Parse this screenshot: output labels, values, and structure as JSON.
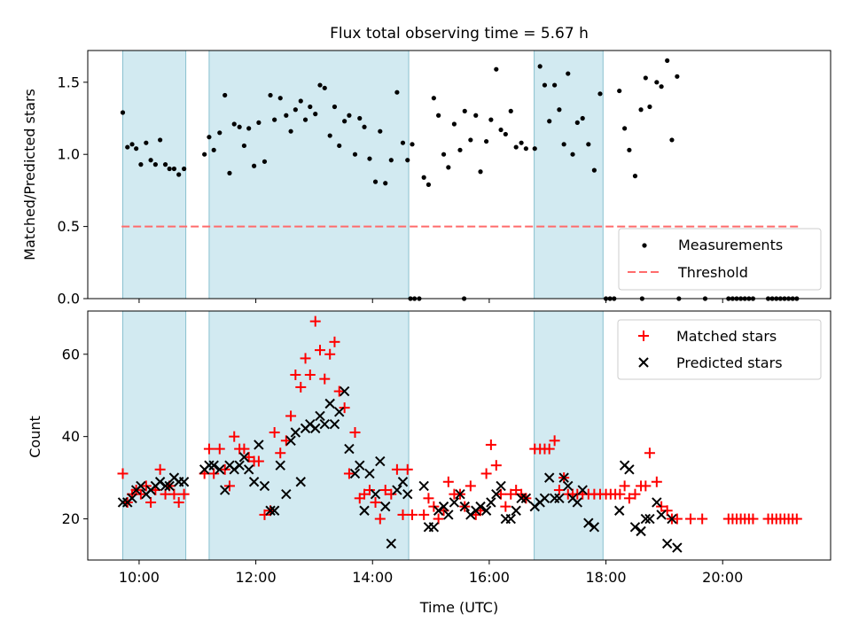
{
  "chart_data": [
    {
      "type": "scatter",
      "title": "Flux total observing time = 5.67 h",
      "xlabel": "",
      "ylabel": "Matched/Predicted stars",
      "xlim": [
        9.12,
        21.85
      ],
      "ylim": [
        0.0,
        1.72
      ],
      "yticks": [
        0.0,
        0.5,
        1.0,
        1.5
      ],
      "ytick_labels": [
        "0.0",
        "0.5",
        "1.0",
        "1.5"
      ],
      "shaded_intervals": [
        [
          9.72,
          10.8
        ],
        [
          11.2,
          14.62
        ],
        [
          16.77,
          17.95
        ]
      ],
      "threshold": {
        "value": 0.5,
        "x_start": 9.7,
        "x_end": 21.3
      },
      "legend": {
        "position": "lower-right",
        "entries": [
          "Measurements",
          "Threshold"
        ]
      },
      "series": [
        {
          "name": "Measurements",
          "x": [
            9.72,
            9.8,
            9.88,
            9.95,
            10.03,
            10.12,
            10.2,
            10.28,
            10.36,
            10.45,
            10.52,
            10.6,
            10.68,
            10.77,
            11.12,
            11.2,
            11.28,
            11.38,
            11.47,
            11.55,
            11.63,
            11.72,
            11.8,
            11.88,
            11.97,
            12.05,
            12.15,
            12.25,
            12.32,
            12.42,
            12.52,
            12.6,
            12.68,
            12.77,
            12.85,
            12.93,
            13.02,
            13.1,
            13.18,
            13.27,
            13.35,
            13.43,
            13.52,
            13.6,
            13.7,
            13.78,
            13.86,
            13.95,
            14.05,
            14.13,
            14.22,
            14.32,
            14.42,
            14.52,
            14.6,
            14.68,
            14.88,
            14.96,
            15.05,
            15.13,
            15.22,
            15.3,
            15.4,
            15.5,
            15.58,
            15.68,
            15.77,
            15.85,
            15.95,
            16.03,
            16.12,
            16.2,
            16.28,
            16.37,
            16.46,
            16.55,
            16.63,
            16.78,
            16.87,
            16.95,
            17.03,
            17.12,
            17.2,
            17.28,
            17.35,
            17.43,
            17.51,
            17.6,
            17.7,
            17.8,
            17.9,
            18.23,
            18.32,
            18.4,
            18.5,
            18.6,
            18.68,
            18.75,
            18.87,
            18.95,
            19.05,
            19.13,
            19.22,
            14.65,
            14.72,
            14.8,
            15.57,
            18.0,
            18.07,
            18.14,
            18.62,
            19.25,
            19.7,
            20.1,
            20.17,
            20.24,
            20.31,
            20.38,
            20.45,
            20.52,
            20.78,
            20.85,
            20.92,
            20.99,
            21.06,
            21.13,
            21.2,
            21.27
          ],
          "y": [
            1.29,
            1.05,
            1.07,
            1.04,
            0.93,
            1.08,
            0.96,
            0.93,
            1.1,
            0.93,
            0.9,
            0.9,
            0.86,
            0.9,
            1.0,
            1.12,
            1.03,
            1.15,
            1.41,
            0.87,
            1.21,
            1.19,
            1.06,
            1.18,
            0.92,
            1.22,
            0.95,
            1.41,
            1.24,
            1.39,
            1.27,
            1.16,
            1.31,
            1.37,
            1.24,
            1.33,
            1.28,
            1.48,
            1.46,
            1.13,
            1.33,
            1.06,
            1.23,
            1.27,
            1.0,
            1.25,
            1.19,
            0.97,
            0.81,
            1.16,
            0.8,
            0.96,
            1.43,
            1.08,
            0.96,
            1.07,
            0.84,
            0.79,
            1.39,
            1.27,
            1.0,
            0.91,
            1.21,
            1.03,
            1.3,
            1.1,
            1.27,
            0.88,
            1.09,
            1.24,
            1.59,
            1.17,
            1.14,
            1.3,
            1.05,
            1.08,
            1.04,
            1.04,
            1.61,
            1.48,
            1.23,
            1.48,
            1.31,
            1.07,
            1.56,
            1.0,
            1.22,
            1.25,
            1.07,
            0.89,
            1.42,
            1.44,
            1.18,
            1.03,
            0.85,
            1.31,
            1.53,
            1.33,
            1.5,
            1.47,
            1.65,
            1.1,
            1.54,
            0.0,
            0.0,
            0.0,
            0.0,
            0.0,
            0.0,
            0.0,
            0.0,
            0.0,
            0.0,
            0.0,
            0.0,
            0.0,
            0.0,
            0.0,
            0.0,
            0.0,
            0.0,
            0.0,
            0.0,
            0.0,
            0.0,
            0.0,
            0.0,
            0.0
          ]
        }
      ]
    },
    {
      "type": "scatter",
      "title": "",
      "xlabel": "Time (UTC)",
      "ylabel": "Count",
      "xlim": [
        9.12,
        21.85
      ],
      "ylim": [
        10,
        70.5
      ],
      "yticks": [
        20,
        40,
        60
      ],
      "ytick_labels": [
        "20",
        "40",
        "60"
      ],
      "xticks": [
        10,
        12,
        14,
        16,
        18,
        20
      ],
      "xtick_labels": [
        "10:00",
        "12:00",
        "14:00",
        "16:00",
        "18:00",
        "20:00"
      ],
      "shaded_intervals": [
        [
          9.72,
          10.8
        ],
        [
          11.2,
          14.62
        ],
        [
          16.77,
          17.95
        ]
      ],
      "legend": {
        "position": "top-right",
        "entries": [
          "Matched stars",
          "Predicted stars"
        ]
      },
      "series": [
        {
          "name": "Matched stars",
          "marker": "+",
          "x": [
            9.72,
            9.8,
            9.88,
            9.95,
            10.03,
            10.12,
            10.2,
            10.28,
            10.36,
            10.45,
            10.52,
            10.6,
            10.68,
            10.77,
            11.12,
            11.2,
            11.28,
            11.38,
            11.47,
            11.55,
            11.63,
            11.72,
            11.8,
            11.88,
            11.97,
            12.05,
            12.15,
            12.25,
            12.32,
            12.42,
            12.52,
            12.6,
            12.68,
            12.77,
            12.85,
            12.93,
            13.02,
            13.1,
            13.18,
            13.27,
            13.35,
            13.43,
            13.52,
            13.6,
            13.7,
            13.78,
            13.86,
            13.95,
            14.05,
            14.13,
            14.22,
            14.32,
            14.42,
            14.52,
            14.6,
            14.68,
            14.88,
            14.96,
            15.05,
            15.13,
            15.22,
            15.3,
            15.4,
            15.5,
            15.58,
            15.68,
            15.77,
            15.85,
            15.95,
            16.03,
            16.12,
            16.2,
            16.28,
            16.37,
            16.46,
            16.55,
            16.63,
            16.78,
            16.87,
            16.95,
            17.03,
            17.12,
            17.2,
            17.28,
            17.35,
            17.43,
            17.51,
            17.6,
            17.7,
            17.8,
            17.9,
            18.0,
            18.08,
            18.16,
            18.24,
            18.32,
            18.4,
            18.5,
            18.6,
            18.68,
            18.75,
            18.87,
            18.95,
            19.05,
            19.13,
            19.22,
            19.45,
            19.65,
            20.1,
            20.17,
            20.24,
            20.31,
            20.38,
            20.45,
            20.52,
            20.78,
            20.85,
            20.92,
            20.99,
            21.06,
            21.13,
            21.2,
            21.27
          ],
          "y": [
            31,
            24,
            26,
            27,
            26,
            28,
            24,
            27,
            32,
            26,
            28,
            26,
            24,
            26,
            31,
            37,
            31,
            37,
            32,
            28,
            40,
            37,
            37,
            35,
            34,
            34,
            21,
            22,
            41,
            36,
            39,
            45,
            55,
            52,
            59,
            55,
            68,
            61,
            54,
            60,
            63,
            51,
            47,
            31,
            41,
            25,
            26,
            27,
            24,
            20,
            27,
            26,
            32,
            21,
            32,
            21,
            21,
            25,
            23,
            20,
            22,
            29,
            26,
            26,
            23,
            28,
            21,
            22,
            31,
            38,
            33,
            26,
            23,
            26,
            27,
            26,
            25,
            37,
            37,
            37,
            37,
            39,
            27,
            30,
            26,
            26,
            26,
            26,
            26,
            26,
            26,
            26,
            26,
            26,
            26,
            28,
            25,
            26,
            28,
            28,
            36,
            29,
            23,
            22,
            20,
            20,
            20,
            20,
            20,
            20,
            20,
            20,
            20,
            20,
            20,
            20,
            20,
            20,
            20,
            20,
            20,
            20,
            20
          ]
        },
        {
          "name": "Predicted stars",
          "marker": "x",
          "x": [
            9.72,
            9.8,
            9.88,
            9.95,
            10.03,
            10.12,
            10.2,
            10.28,
            10.36,
            10.45,
            10.52,
            10.6,
            10.68,
            10.77,
            11.12,
            11.2,
            11.28,
            11.38,
            11.47,
            11.55,
            11.63,
            11.72,
            11.8,
            11.88,
            11.97,
            12.05,
            12.15,
            12.25,
            12.32,
            12.42,
            12.52,
            12.6,
            12.68,
            12.77,
            12.85,
            12.93,
            13.02,
            13.1,
            13.18,
            13.27,
            13.35,
            13.43,
            13.52,
            13.6,
            13.7,
            13.78,
            13.86,
            13.95,
            14.05,
            14.13,
            14.22,
            14.32,
            14.42,
            14.52,
            14.6,
            14.88,
            14.96,
            15.05,
            15.13,
            15.22,
            15.3,
            15.4,
            15.5,
            15.58,
            15.68,
            15.77,
            15.85,
            15.95,
            16.03,
            16.12,
            16.2,
            16.28,
            16.37,
            16.46,
            16.55,
            16.63,
            16.78,
            16.87,
            16.95,
            17.03,
            17.12,
            17.2,
            17.28,
            17.35,
            17.43,
            17.51,
            17.6,
            17.7,
            17.8,
            18.23,
            18.32,
            18.4,
            18.5,
            18.6,
            18.68,
            18.75,
            18.87,
            18.95,
            19.05,
            19.13,
            19.22
          ],
          "y": [
            24,
            24,
            25,
            27,
            28,
            26,
            27,
            28,
            29,
            28,
            28,
            30,
            29,
            29,
            32,
            33,
            33,
            32,
            27,
            33,
            32,
            33,
            35,
            32,
            29,
            38,
            28,
            22,
            22,
            33,
            26,
            39,
            41,
            29,
            42,
            43,
            42,
            45,
            43,
            48,
            43,
            46,
            51,
            37,
            31,
            33,
            22,
            31,
            26,
            34,
            23,
            14,
            27,
            29,
            26,
            28,
            18,
            18,
            22,
            23,
            21,
            24,
            26,
            23,
            21,
            22,
            23,
            22,
            24,
            26,
            28,
            20,
            20,
            22,
            25,
            25,
            23,
            24,
            25,
            30,
            25,
            25,
            30,
            28,
            25,
            24,
            27,
            19,
            18,
            22,
            33,
            32,
            18,
            17,
            20,
            20,
            24,
            21,
            14,
            20,
            13
          ]
        }
      ]
    }
  ]
}
